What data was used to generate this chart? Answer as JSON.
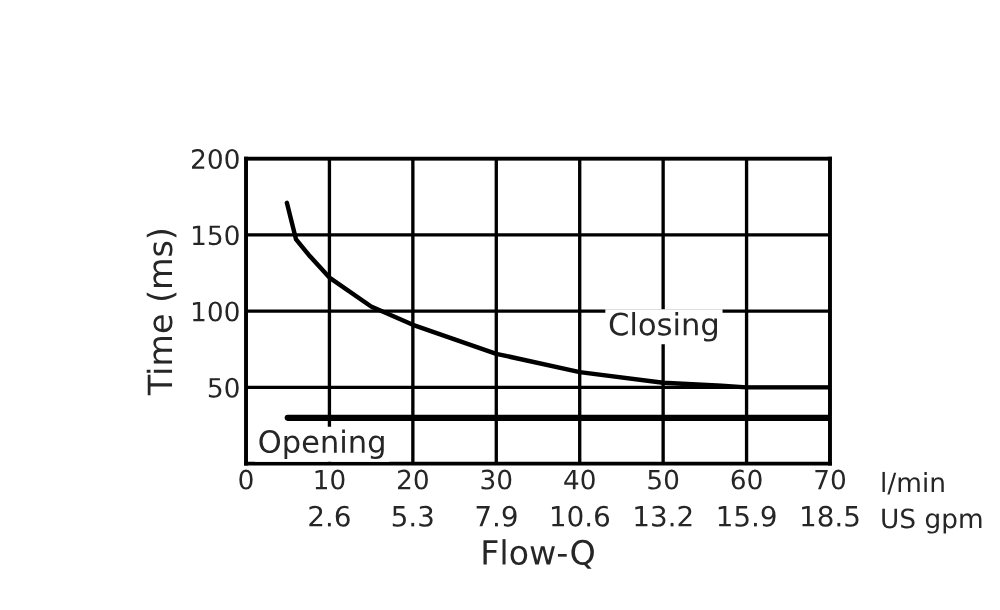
{
  "chart_data": {
    "type": "line",
    "xlabel": "Flow-Q",
    "ylabel": "Time (ms)",
    "xlim": [
      0,
      70
    ],
    "ylim": [
      0,
      200
    ],
    "xticks": [
      0,
      10,
      20,
      30,
      40,
      50,
      60,
      70
    ],
    "x2lim": [
      0,
      18.49
    ],
    "x2ticks": [
      {
        "value": 2.64,
        "label": "2.6"
      },
      {
        "value": 5.28,
        "label": "5.3"
      },
      {
        "value": 7.93,
        "label": "7.9"
      },
      {
        "value": 10.57,
        "label": "10.6"
      },
      {
        "value": 13.21,
        "label": "13.2"
      },
      {
        "value": 15.85,
        "label": "15.9"
      },
      {
        "value": 18.49,
        "label": "18.5"
      }
    ],
    "yticks": [
      50,
      100,
      150,
      200
    ],
    "annotations": [
      "l/min",
      "US gpm"
    ],
    "grid": true,
    "legend": false,
    "marker": "none",
    "line_style": "solid",
    "series": [
      {
        "name": "Closing",
        "color": "#000000",
        "x": [
          4.9,
          6,
          7.5,
          10,
          15,
          20,
          30,
          40,
          50,
          57,
          60,
          70
        ],
        "values": [
          171,
          147,
          137,
          122,
          103,
          91,
          72,
          60,
          53,
          51,
          50,
          50
        ]
      },
      {
        "name": "Opening",
        "color": "#000000",
        "x": [
          5,
          70
        ],
        "values": [
          30,
          30
        ]
      }
    ]
  }
}
